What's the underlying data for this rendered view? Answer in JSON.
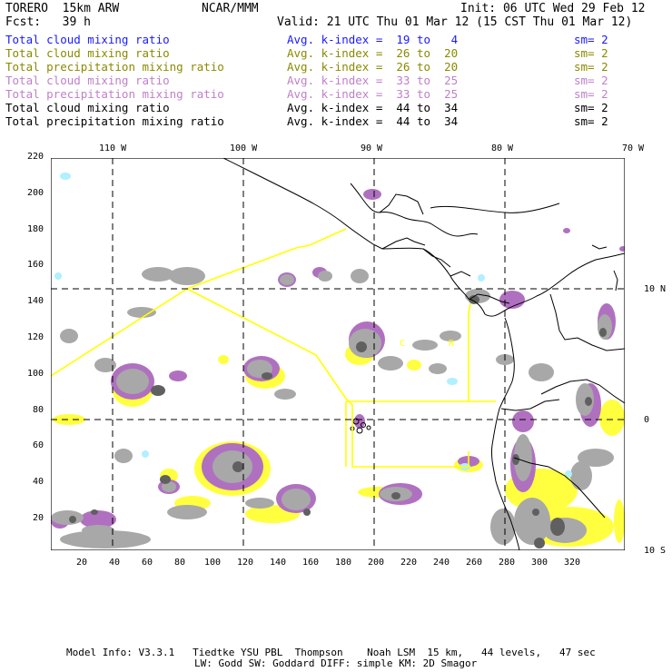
{
  "header": {
    "model": "TORERO  15km ARW",
    "org": "NCAR/MMM",
    "init": "Init: 06 UTC Wed 29 Feb 12",
    "fcst": "Fcst:   39 h",
    "valid": "Valid: 21 UTC Thu 01 Mar 12 (15 CST Thu 01 Mar 12)"
  },
  "legend": [
    {
      "label": "Total cloud mixing ratio",
      "kindex": "Avg. k-index =  19 to   4",
      "sm": "sm= 2",
      "color": "#1a1aff"
    },
    {
      "label": "Total cloud mixing ratio",
      "kindex": "Avg. k-index =  26 to  20",
      "sm": "sm= 2",
      "color": "#8a8a00"
    },
    {
      "label": "Total precipitation mixing ratio",
      "kindex": "Avg. k-index =  26 to  20",
      "sm": "sm= 2",
      "color": "#8a8a00"
    },
    {
      "label": "Total cloud mixing ratio",
      "kindex": "Avg. k-index =  33 to  25",
      "sm": "sm= 2",
      "color": "#c080c8"
    },
    {
      "label": "Total precipitation mixing ratio",
      "kindex": "Avg. k-index =  33 to  25",
      "sm": "sm= 2",
      "color": "#c080c8"
    },
    {
      "label": "Total cloud mixing ratio",
      "kindex": "Avg. k-index =  44 to  34",
      "sm": "sm= 2",
      "color": "#000000"
    },
    {
      "label": "Total precipitation mixing ratio",
      "kindex": "Avg. k-index =  44 to  34",
      "sm": "sm= 2",
      "color": "#000000"
    }
  ],
  "axes": {
    "x_ticks": [
      "20",
      "40",
      "60",
      "80",
      "100",
      "120",
      "140",
      "160",
      "180",
      "200",
      "220",
      "240",
      "260",
      "280",
      "300",
      "320"
    ],
    "y_ticks": [
      "20",
      "40",
      "60",
      "80",
      "100",
      "120",
      "140",
      "160",
      "180",
      "200",
      "220"
    ],
    "lon_labels": [
      "110 W",
      "100 W",
      "90 W",
      "80 W",
      "70 W"
    ],
    "lat_labels": [
      "10 N",
      "0",
      "10 S"
    ]
  },
  "map_labels": {
    "region_c": "C",
    "region_r": "R"
  },
  "footer": {
    "line1": "Model Info: V3.3.1   Tiedtke YSU PBL  Thompson    Noah LSM  15 km,   44 levels,   47 sec",
    "line2": "LW: Godd SW: Goddard DIFF: simple KM: 2D Smagor"
  },
  "colors": {
    "gray_cloud": "#a8a8a8",
    "dark_cloud": "#606060",
    "purple": "#b070c0",
    "yellow": "#ffff40",
    "cyan": "#b0f0ff",
    "domain_line": "#ffff00"
  }
}
